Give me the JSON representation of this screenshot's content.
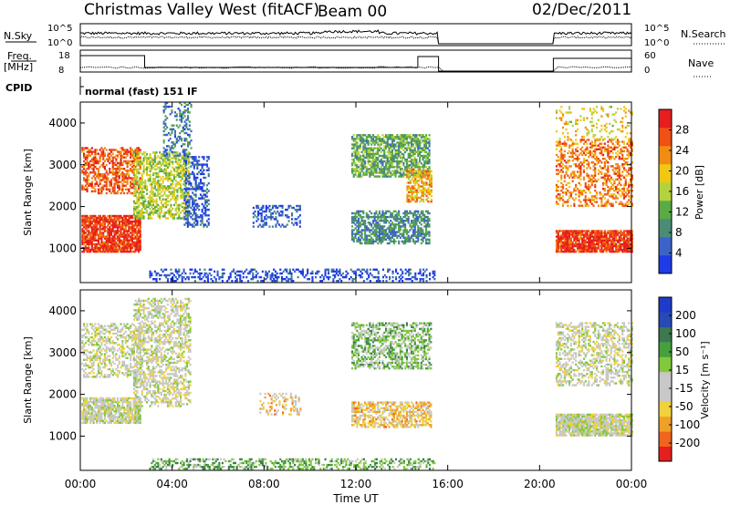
{
  "header": {
    "title": "Christmas Valley West (fitACF)",
    "beam": "Beam 00",
    "date": "02/Dec/2011"
  },
  "top_panels": {
    "nsky_label": "N.Sky",
    "nsearch_label": "N.Search",
    "nsky_ticks": [
      "10^5",
      "10^0"
    ],
    "nsky_right_ticks": [
      "10^5",
      "10^0"
    ],
    "freq_label": "Freq.",
    "freq_unit": "[MHz]",
    "freq_ticks": [
      "18",
      "8"
    ],
    "nave_label": "Nave",
    "nave_ticks": [
      "60",
      "0"
    ],
    "cpid_label": "CPID",
    "cpid_text": "normal (fast) 151 IF"
  },
  "colors": {
    "power": [
      "#1e3ce6",
      "#3c64c8",
      "#4a8c78",
      "#5aaa46",
      "#b4d23c",
      "#f0c814",
      "#f08c14",
      "#f05014",
      "#e61e1e"
    ],
    "velocity": [
      "#e61e1e",
      "#f0641e",
      "#f0a028",
      "#f0d23c",
      "#c8c8c8",
      "#c8c8c8",
      "#82c83c",
      "#46a03c",
      "#3c7850",
      "#284ab4",
      "#1e3cc8"
    ]
  },
  "chart_data": [
    {
      "type": "heatmap",
      "name_panel": "power",
      "ylabel": "Slant Range [km]",
      "ylim": [
        180,
        4500
      ],
      "yticks": [
        1000,
        2000,
        3000,
        4000
      ],
      "xlim": [
        0,
        24
      ],
      "xticks": [
        "00:00",
        "04:00",
        "08:00",
        "12:00",
        "16:00",
        "20:00",
        "00:00"
      ],
      "colorbar": {
        "label": "Power [dB]",
        "ticks": [
          "4",
          "8",
          "12",
          "16",
          "20",
          "24",
          "28"
        ],
        "range": [
          0,
          30
        ]
      }
    },
    {
      "type": "heatmap",
      "name_panel": "velocity",
      "ylabel": "Slant Range [km]",
      "ylim": [
        180,
        4500
      ],
      "yticks": [
        1000,
        2000,
        3000,
        4000
      ],
      "xlim": [
        0,
        24
      ],
      "xlabel": "Time UT",
      "xticks": [
        "00:00",
        "04:00",
        "08:00",
        "12:00",
        "16:00",
        "20:00",
        "00:00"
      ],
      "colorbar": {
        "label": "Velocity [m s⁻¹]",
        "ticks": [
          "200",
          "100",
          "50",
          "15",
          "-15",
          "-50",
          "-100",
          "-200"
        ],
        "range": [
          -250,
          250
        ]
      }
    }
  ]
}
